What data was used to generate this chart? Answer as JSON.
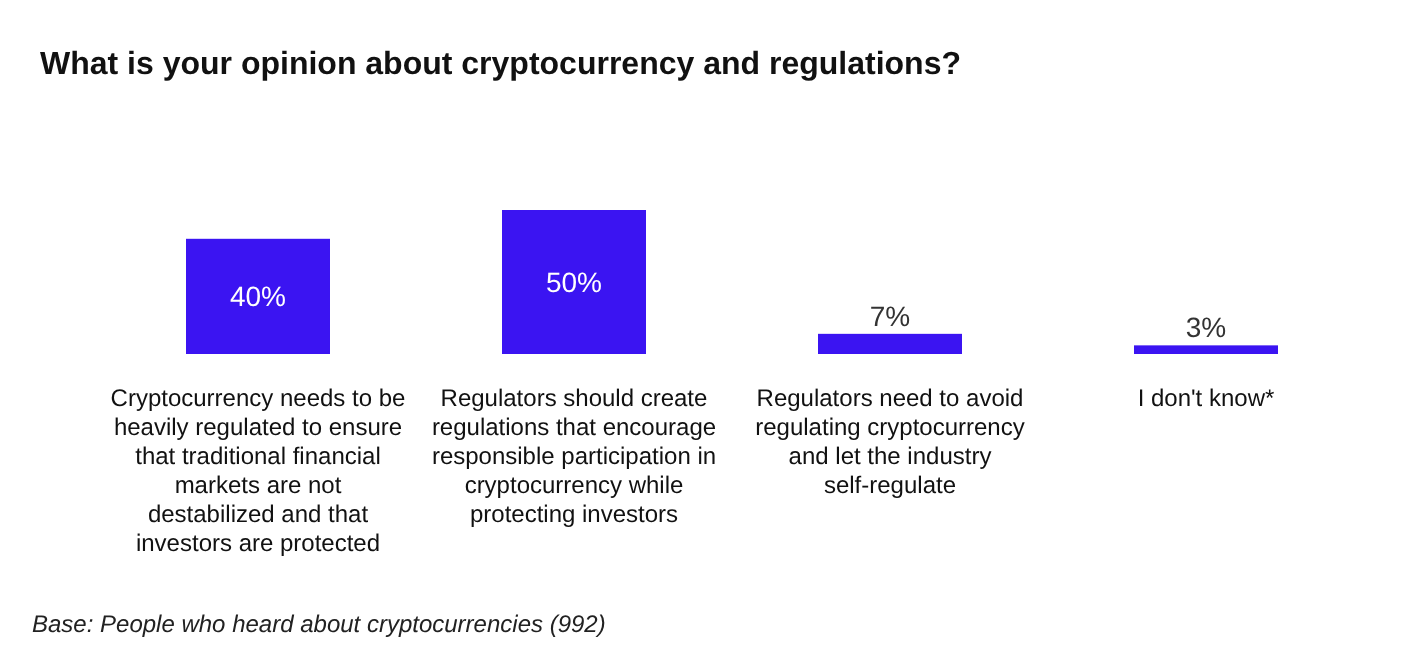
{
  "chart_data": {
    "type": "bar",
    "title": "What is your opinion about cryptocurrency and regulations?",
    "categories": [
      "Cryptocurrency needs to be heavily regulated to ensure that traditional financial markets are not destabilized and that investors are protected",
      "Regulators should create regulations that encourage responsible participation in cryptocurrency while protecting investors",
      "Regulators need to avoid regulating cryptocurrency and let the industry self-regulate",
      "I don't know*"
    ],
    "values": [
      40,
      50,
      7,
      3
    ],
    "value_labels": [
      "40%",
      "50%",
      "7%",
      "3%"
    ],
    "color": "#3b14f2",
    "annotations": [
      "Base: People who heard about cryptocurrencies (992)"
    ]
  }
}
